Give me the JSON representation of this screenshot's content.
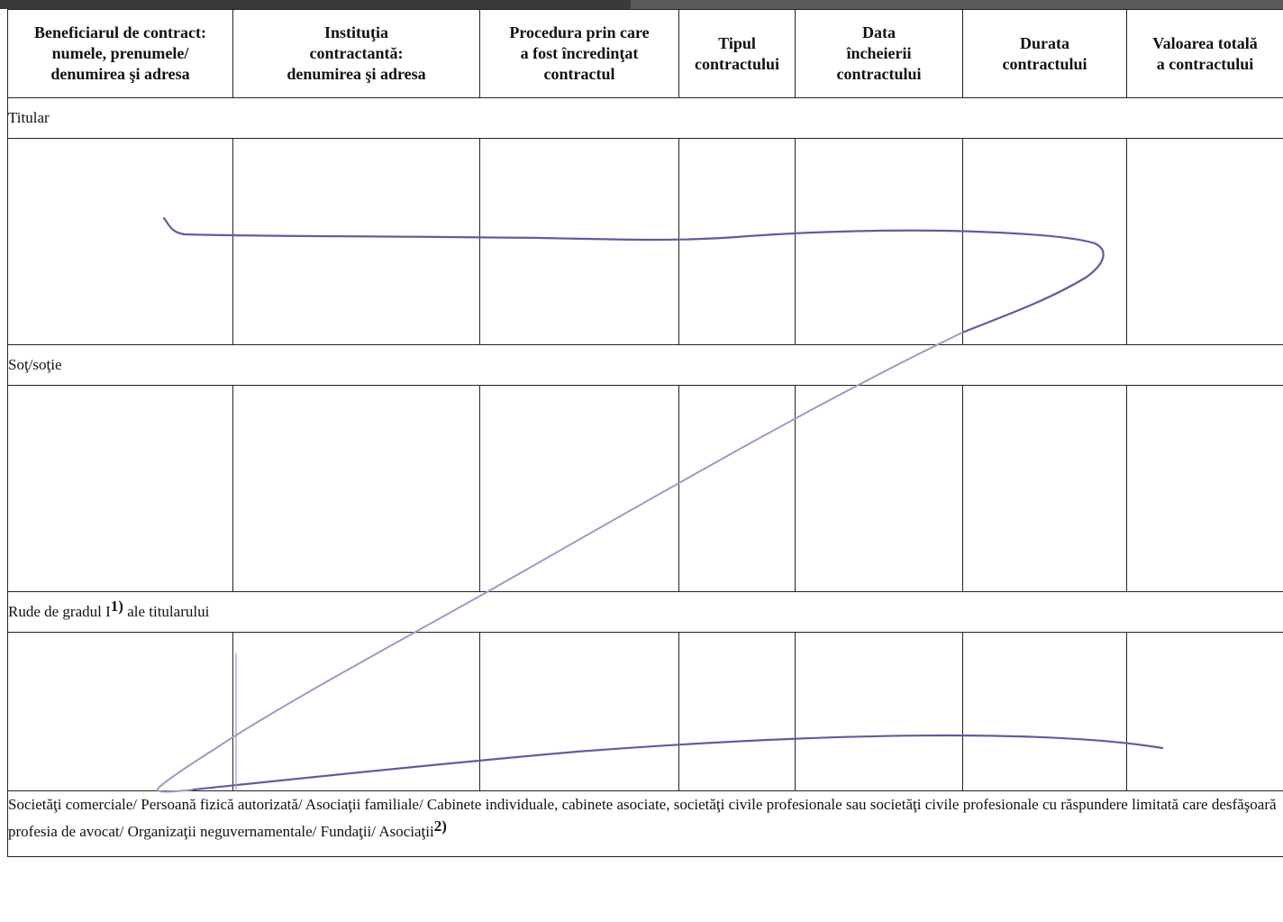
{
  "headers": [
    [
      "Beneficiarul de contract:",
      "numele, prenumele/",
      "denumirea şi adresa"
    ],
    [
      "Instituţia",
      "contractantă:",
      "denumirea şi adresa"
    ],
    [
      "Procedura prin care",
      "a fost încredinţat",
      "contractul"
    ],
    [
      "Tipul",
      "contractului"
    ],
    [
      "Data",
      "încheierii",
      "contractului"
    ],
    [
      "Durata",
      "contractului"
    ],
    [
      "Valoarea totală",
      "a contractului"
    ]
  ],
  "sections": {
    "titular": "Titular",
    "sot": "Soţ/soţie",
    "rude": "Rude de gradul I",
    "rude_sup": "1)",
    "rude_suffix": " ale titularului",
    "societati": "Societăţi comerciale/ Persoană fizică autorizată/ Asociaţii familiale/ Cabinete individuale, cabinete asociate, societăţi civile profesionale sau societăţi civile profesionale cu răspundere limitată care desfăşoară profesia de avocat/ Organizaţii neguvernamentale/ Fundaţii/ Asociaţii",
    "societati_sup": "2)"
  },
  "colors": {
    "ink": "#5b5f9e",
    "ink_light": "#9a9cc4"
  }
}
